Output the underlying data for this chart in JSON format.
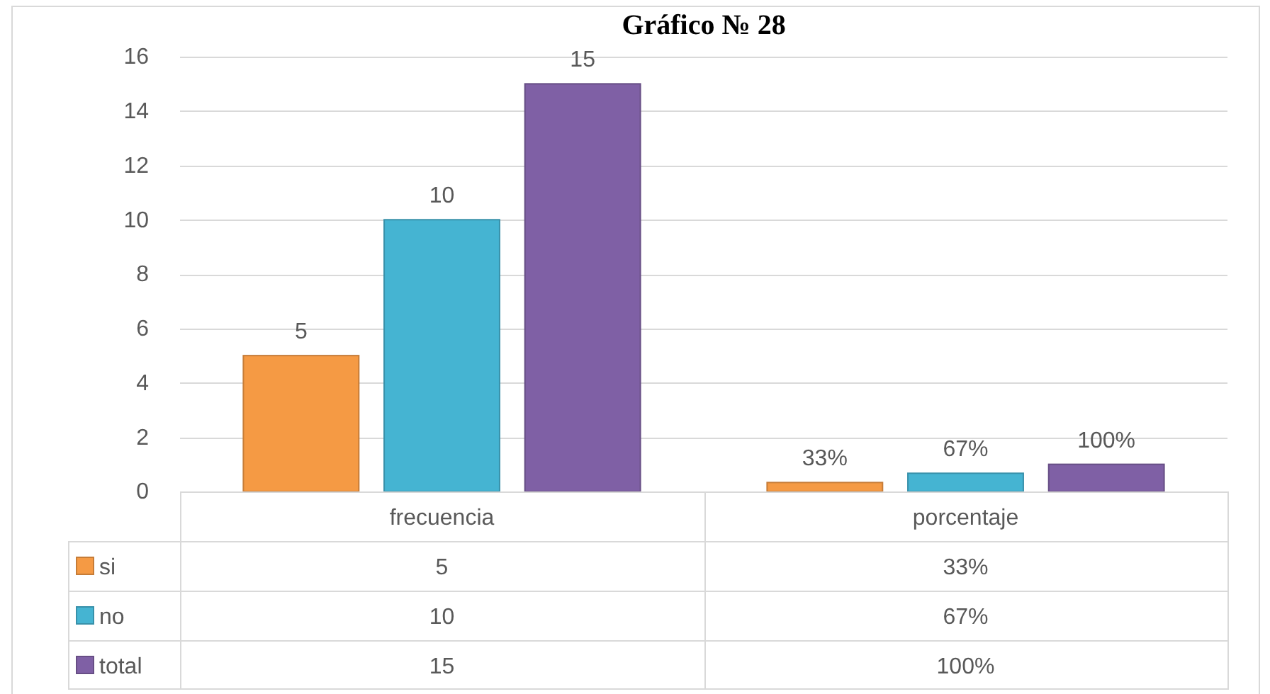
{
  "chart_data": {
    "type": "bar",
    "title": "Gráfico № 28",
    "categories": [
      "frecuencia",
      "porcentaje"
    ],
    "series": [
      {
        "name": "si",
        "color": "#f59a44",
        "values": [
          5,
          0.33
        ],
        "value_labels": [
          "5",
          "33%"
        ]
      },
      {
        "name": "no",
        "color": "#45b4d2",
        "values": [
          10,
          0.67
        ],
        "value_labels": [
          "10",
          "67%"
        ]
      },
      {
        "name": "total",
        "color": "#7f60a5",
        "values": [
          15,
          1
        ],
        "value_labels": [
          "15",
          "100%"
        ]
      }
    ],
    "ylim": [
      0,
      16
    ],
    "yticks": [
      0,
      2,
      4,
      6,
      8,
      10,
      12,
      14,
      16
    ],
    "grid": "y",
    "legend": "bottom"
  }
}
